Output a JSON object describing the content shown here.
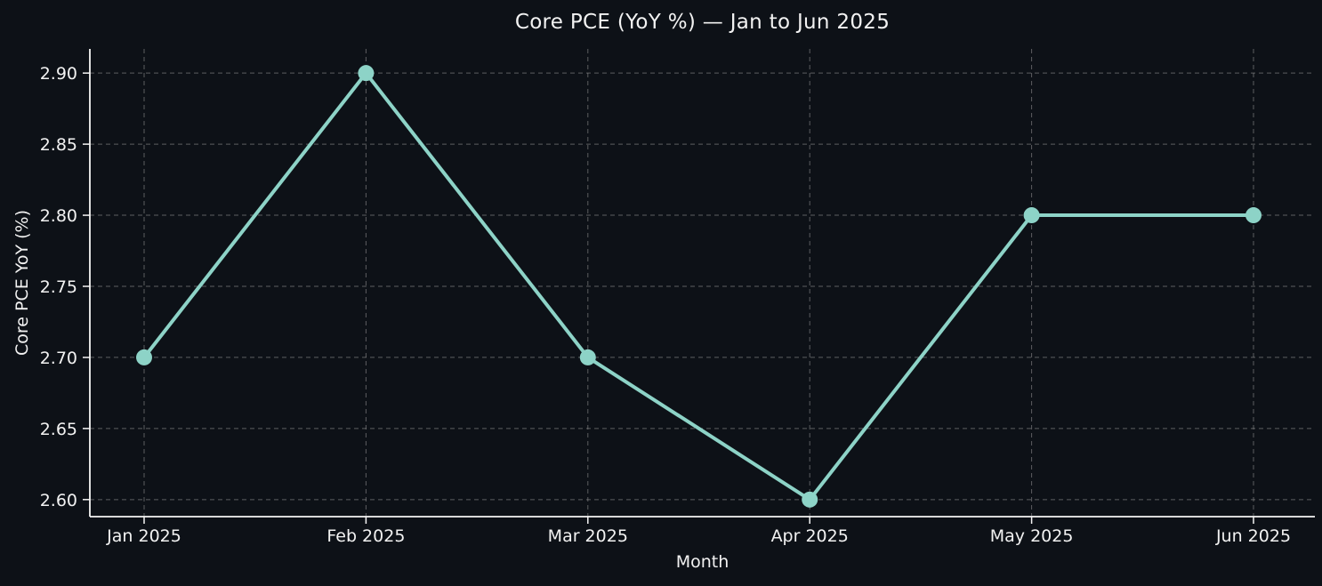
{
  "chart_data": {
    "type": "line",
    "title": "Core PCE (YoY %) — Jan to Jun 2025",
    "xlabel": "Month",
    "ylabel": "Core PCE YoY (%)",
    "categories": [
      "Jan 2025",
      "Feb 2025",
      "Mar 2025",
      "Apr 2025",
      "May 2025",
      "Jun 2025"
    ],
    "series": [
      {
        "name": "Core PCE YoY",
        "values": [
          2.7,
          2.9,
          2.7,
          2.6,
          2.8,
          2.8
        ]
      }
    ],
    "yticks": [
      2.6,
      2.65,
      2.7,
      2.75,
      2.8,
      2.85,
      2.9
    ],
    "ytick_labels": [
      "2.60",
      "2.65",
      "2.70",
      "2.75",
      "2.80",
      "2.85",
      "2.90"
    ],
    "ylim": [
      2.588,
      2.917
    ],
    "grid": true,
    "grid_style": "dashed",
    "legend_position": "none",
    "colors": {
      "background": "#0d1117",
      "line": "#8dd3c7",
      "marker": "#8dd3c7",
      "grid": "#888888",
      "spine": "#f5f5f5",
      "text": "#f2f2f2"
    }
  }
}
